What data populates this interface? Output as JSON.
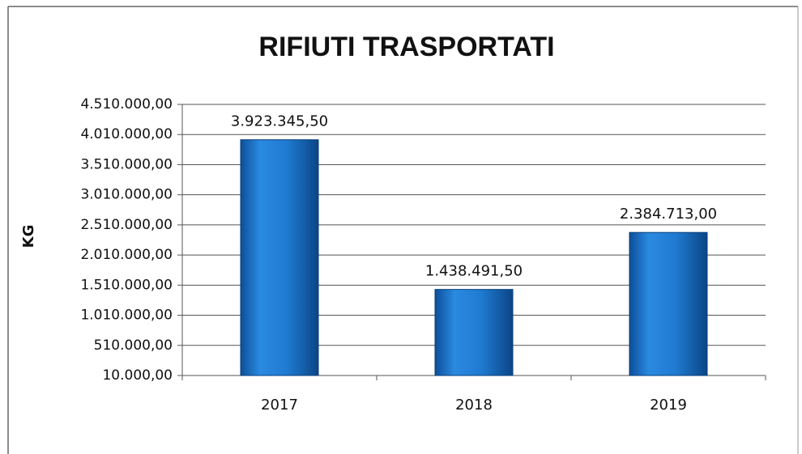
{
  "chart_data": {
    "type": "bar",
    "title": "RIFIUTI TRASPORTATI",
    "y_label": "KG",
    "categories": [
      "2017",
      "2018",
      "2019"
    ],
    "values": [
      3923345.5,
      1438491.5,
      2384713
    ],
    "value_labels": [
      "3.923.345,50",
      "1.438.491,50",
      "2.384.713,00"
    ],
    "color": "#1f7ad0",
    "ylim": [
      10000,
      4510000
    ],
    "yticks": [
      {
        "value": 10000,
        "label": "10.000,00"
      },
      {
        "value": 510000,
        "label": "510.000,00"
      },
      {
        "value": 1010000,
        "label": "1.010.000,00"
      },
      {
        "value": 1510000,
        "label": "1.510.000,00"
      },
      {
        "value": 2010000,
        "label": "2.010.000,00"
      },
      {
        "value": 2510000,
        "label": "2.510.000,00"
      },
      {
        "value": 3010000,
        "label": "3.010.000,00"
      },
      {
        "value": 3510000,
        "label": "3.510.000,00"
      },
      {
        "value": 4010000,
        "label": "4.010.000,00"
      },
      {
        "value": 4510000,
        "label": "4.510.000,00"
      }
    ],
    "grid": true
  }
}
